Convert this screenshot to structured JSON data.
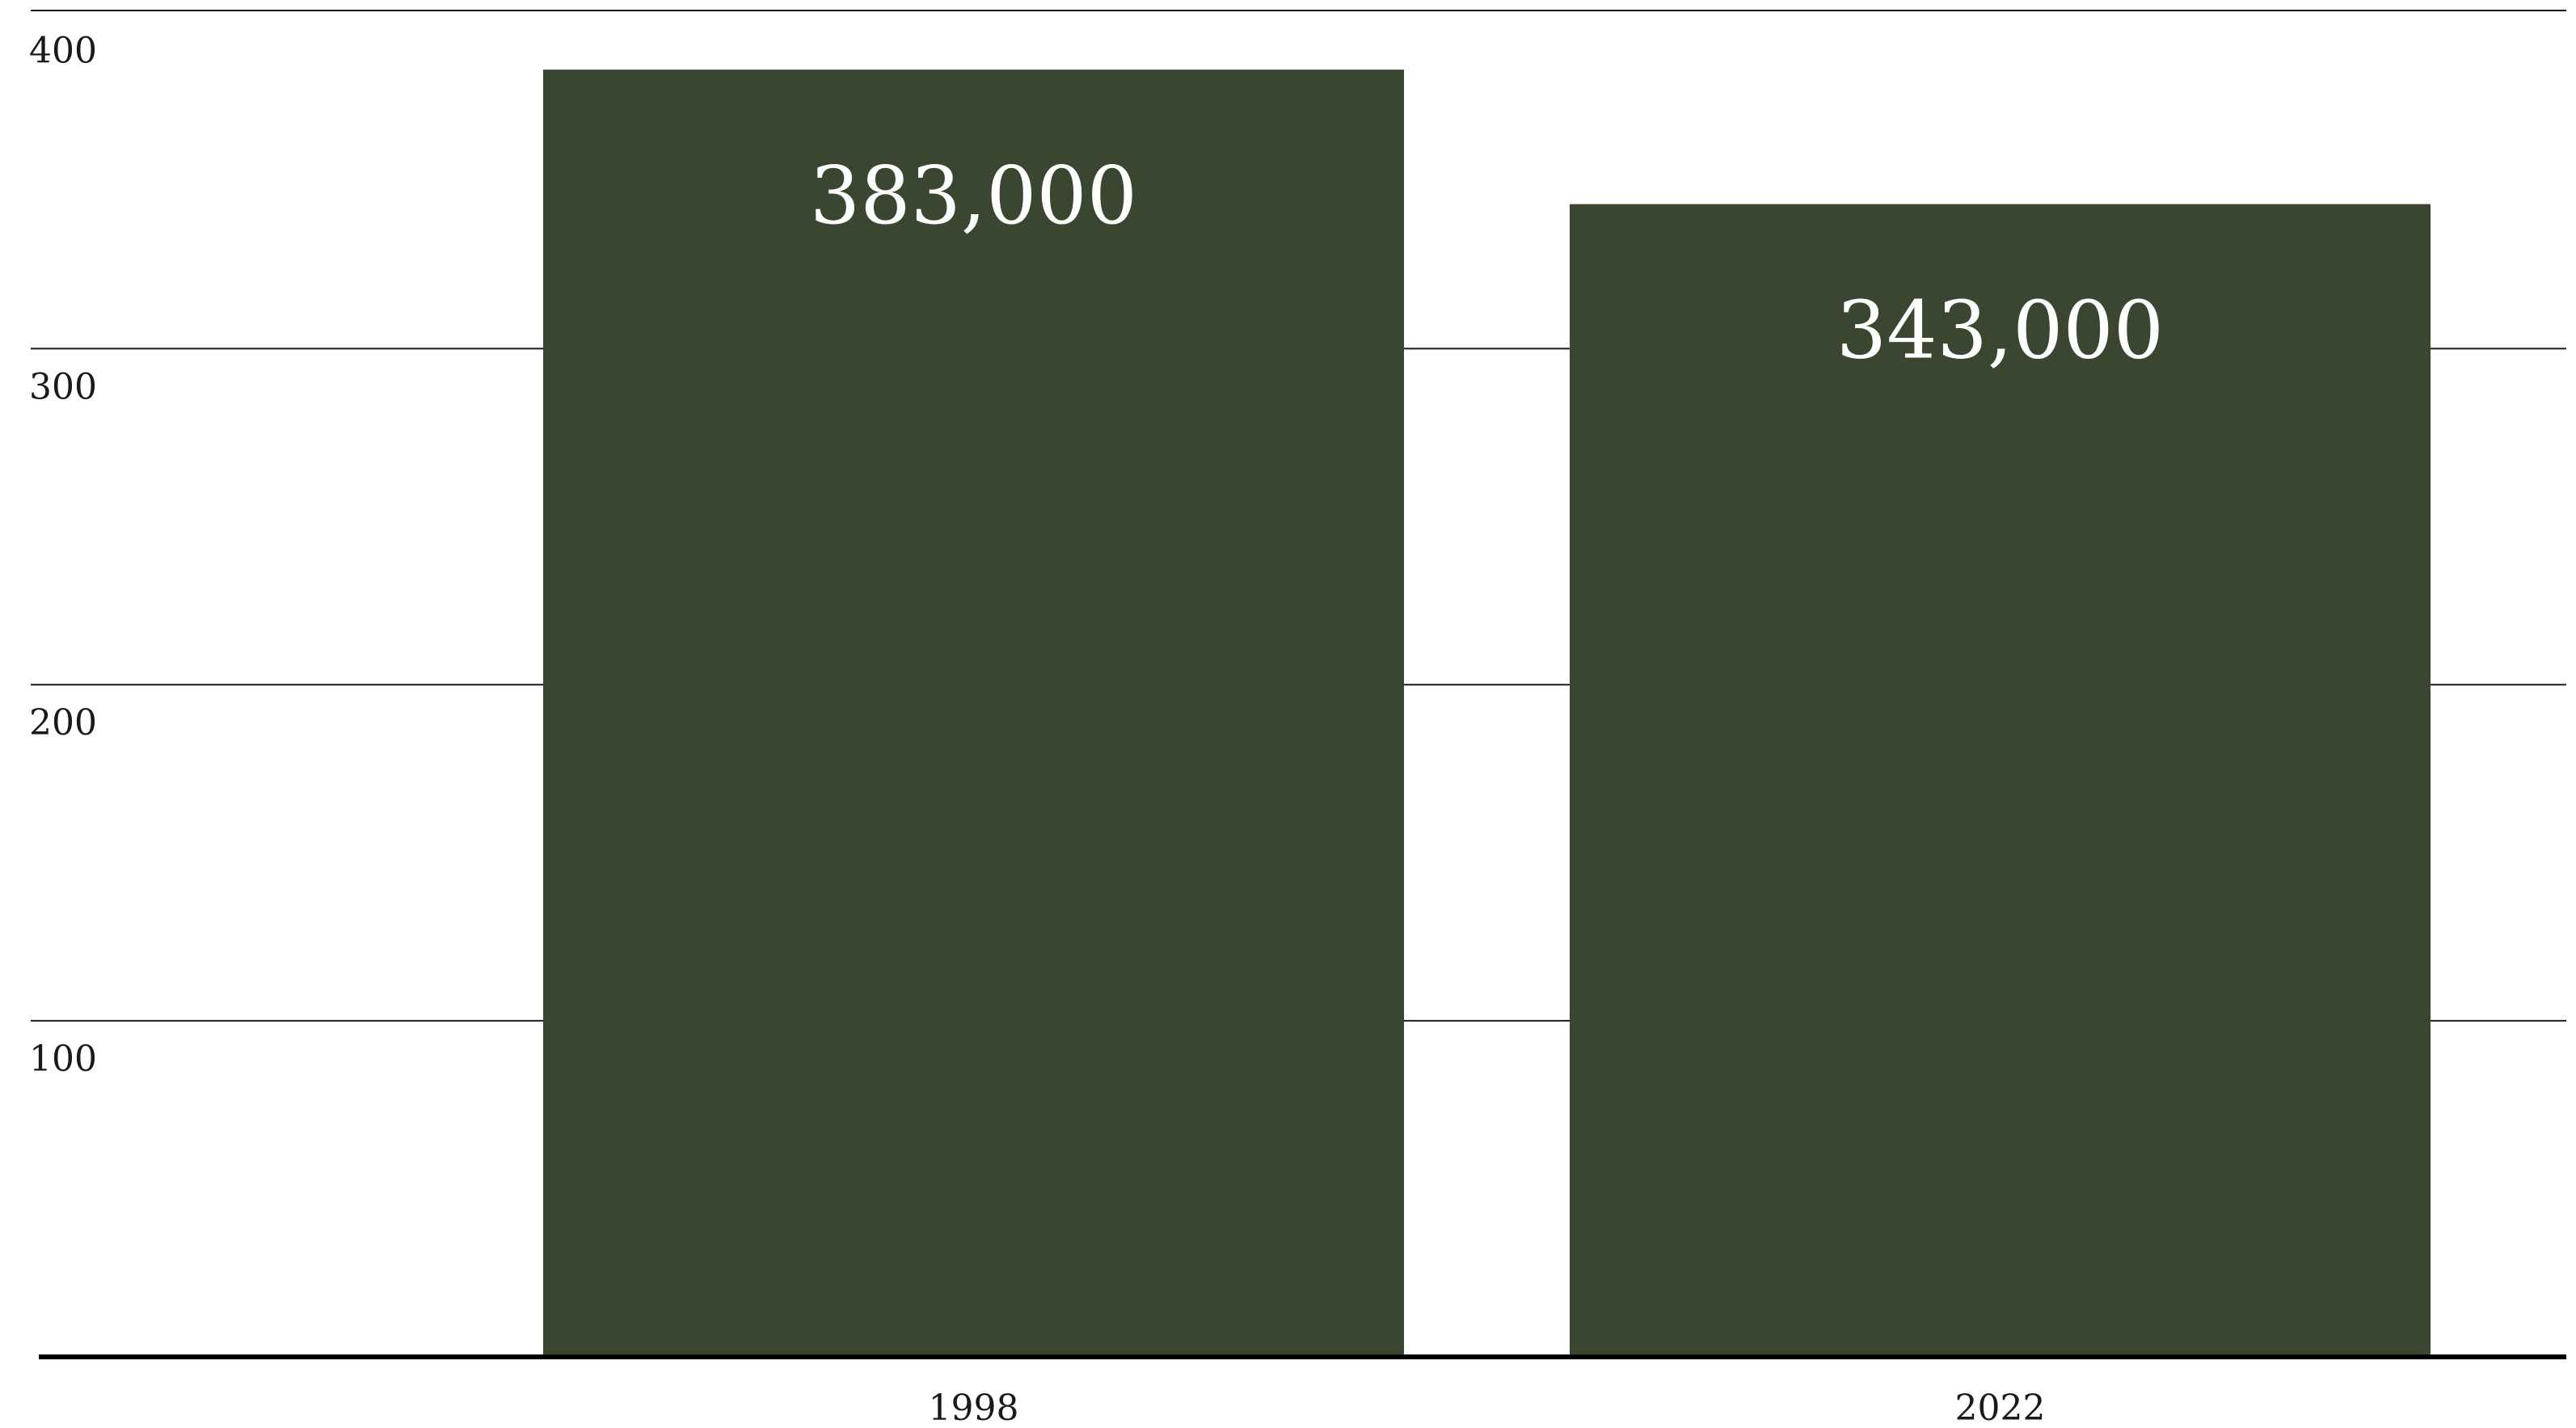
{
  "chart_data": {
    "type": "bar",
    "categories": [
      "1998",
      "2022"
    ],
    "values": [
      383,
      343
    ],
    "data_labels": [
      "383,000",
      "343,000"
    ],
    "title": "",
    "xlabel": "",
    "ylabel": "",
    "ylim": [
      0,
      400
    ],
    "yticks": [
      100,
      200,
      300,
      400
    ],
    "ytick_labels": [
      "100",
      "200",
      "300",
      "400"
    ],
    "grid": true,
    "legend": "none",
    "bar_color": "#3b4630",
    "data_label_color": "#ffffff"
  }
}
